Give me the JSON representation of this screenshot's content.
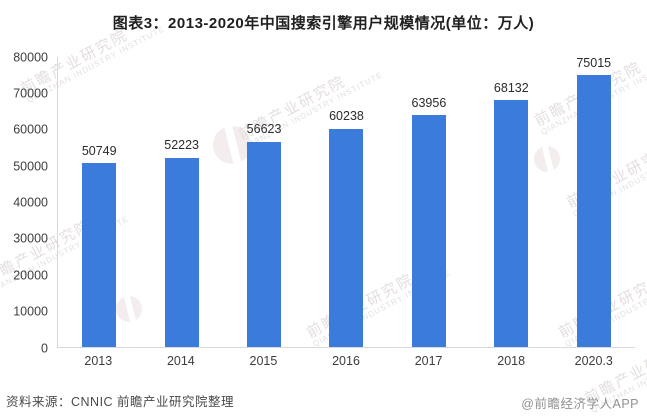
{
  "title": "图表3：2013-2020年中国搜索引擎用户规模情况(单位：万人)",
  "chart_data": {
    "type": "bar",
    "title": "图表3：2013-2020年中国搜索引擎用户规模情况(单位：万人)",
    "categories": [
      "2013",
      "2014",
      "2015",
      "2016",
      "2017",
      "2018",
      "2020.3"
    ],
    "values": [
      50749,
      52223,
      56623,
      60238,
      63956,
      68132,
      75015
    ],
    "xlabel": "",
    "ylabel": "",
    "ylim": [
      0,
      80000
    ],
    "ytick_step": 10000,
    "ytick_labels": [
      "0",
      "10000",
      "20000",
      "30000",
      "40000",
      "50000",
      "60000",
      "70000",
      "80000"
    ],
    "bar_color": "#3a7bdc",
    "grid": false,
    "legend": "none",
    "data_labels": true
  },
  "footer": {
    "source": "资料来源：CNNIC 前瞻产业研究院整理",
    "credit": "@前瞻经济学人APP"
  },
  "watermark": {
    "text": "前瞻产业研究院",
    "subtext": "QIANZHAN  INDUSTRY  INSTITUTE"
  }
}
